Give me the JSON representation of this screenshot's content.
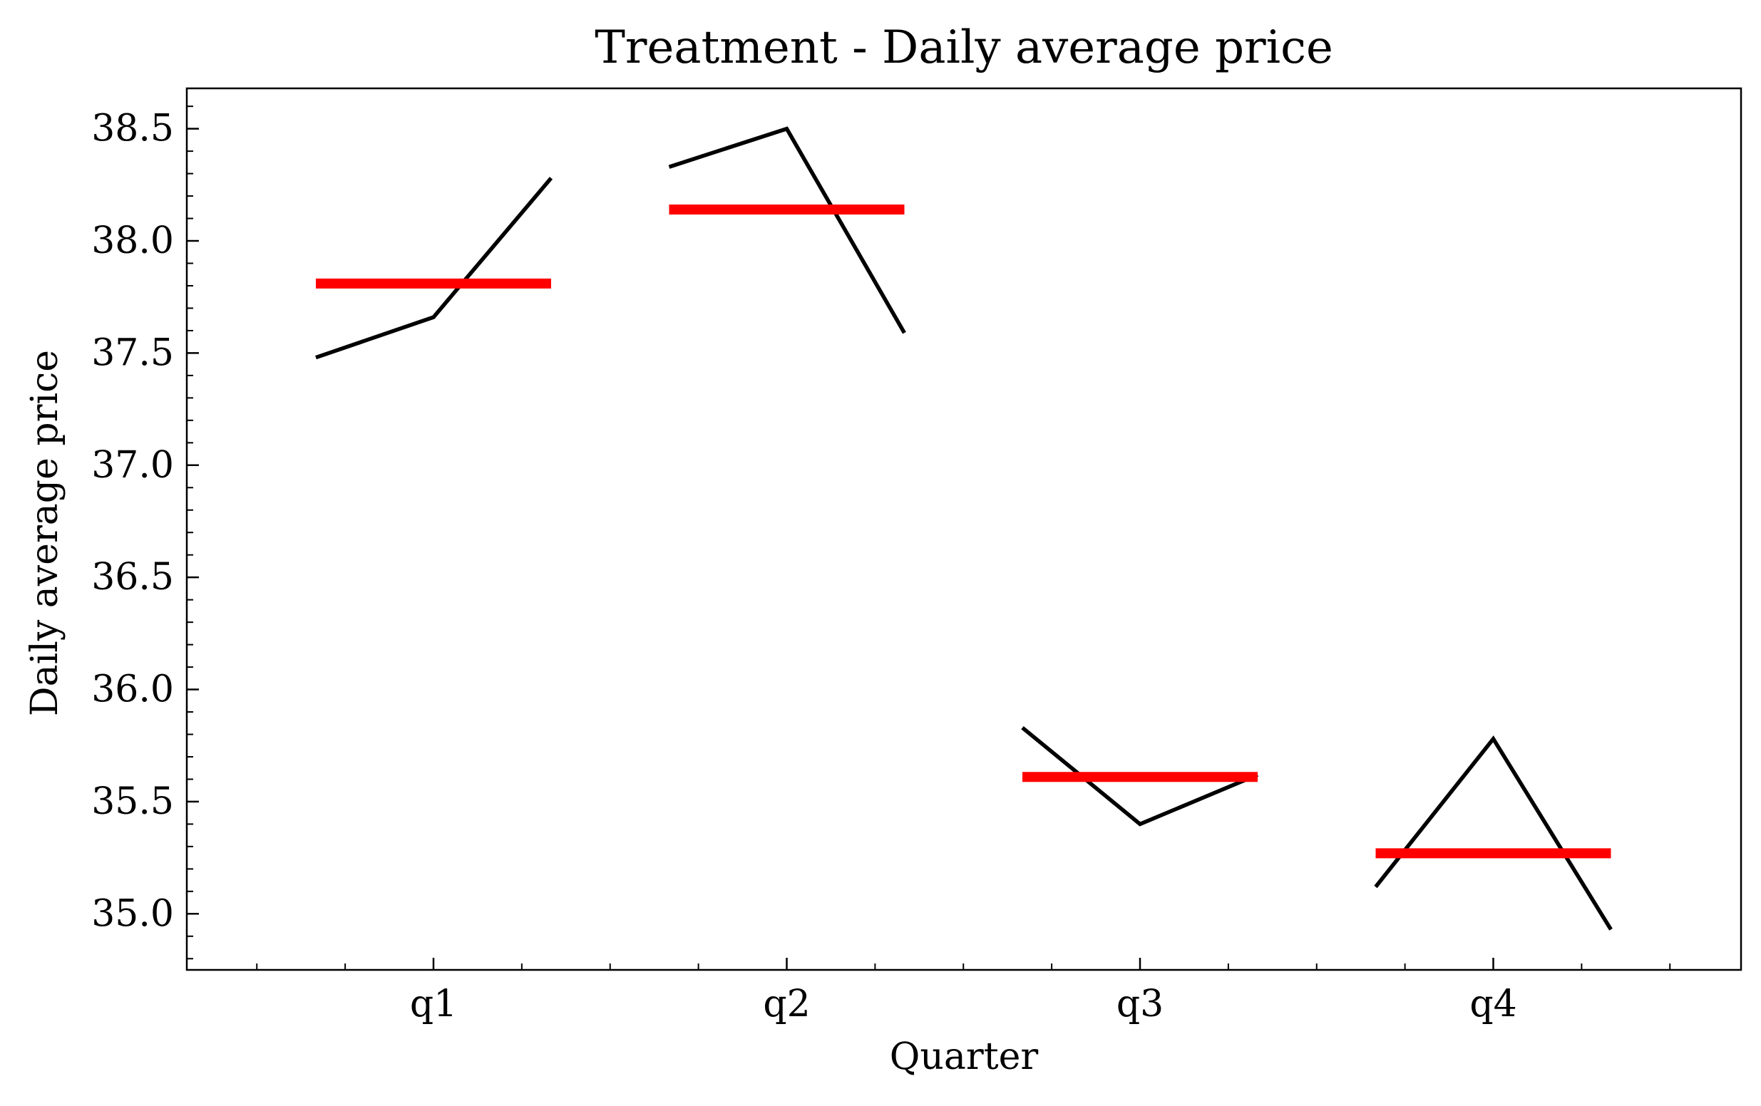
{
  "chart_data": {
    "type": "line",
    "title": "Treatment - Daily average price",
    "xlabel": "Quarter",
    "ylabel": "Daily average price",
    "categories": [
      "q1",
      "q2",
      "q3",
      "q4"
    ],
    "ylim": [
      34.75,
      38.68
    ],
    "yticks": [
      35.0,
      35.5,
      36.0,
      36.5,
      37.0,
      37.5,
      38.0,
      38.5
    ],
    "ytick_labels": [
      "35.0",
      "35.5",
      "36.0",
      "36.5",
      "37.0",
      "37.5",
      "38.0",
      "38.5"
    ],
    "grid": false,
    "legend": "none",
    "series": [
      {
        "type": "line",
        "color": "#000000",
        "groups": [
          {
            "category": "q1",
            "values": [
              37.48,
              37.66,
              38.28
            ]
          },
          {
            "category": "q2",
            "values": [
              38.33,
              38.5,
              37.59
            ]
          },
          {
            "category": "q3",
            "values": [
              35.83,
              35.4,
              35.62
            ]
          },
          {
            "category": "q4",
            "values": [
              35.12,
              35.78,
              34.93
            ]
          }
        ]
      },
      {
        "type": "mean",
        "color": "#ff0000",
        "values": [
          37.81,
          38.14,
          35.61,
          35.27
        ]
      }
    ]
  }
}
